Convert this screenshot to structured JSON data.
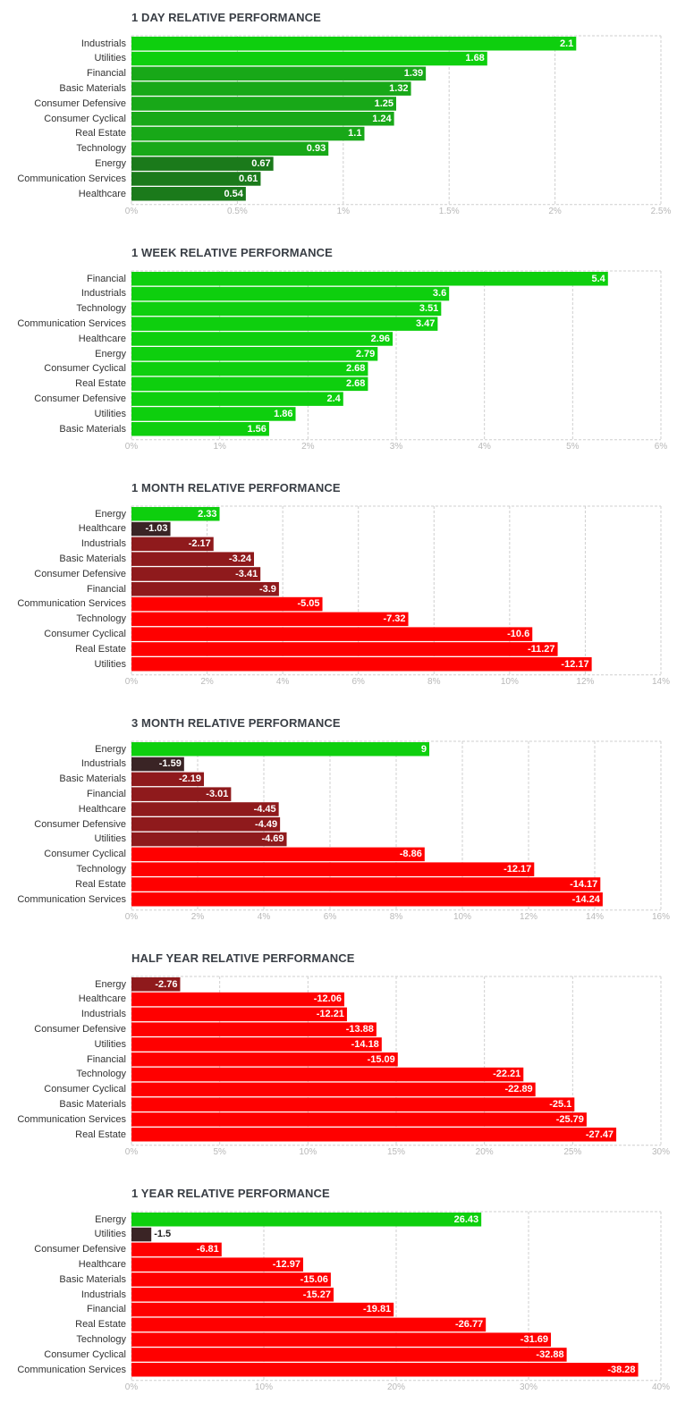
{
  "colors": {
    "pos_strong": "#0ecf0e",
    "pos_mid": "#18a818",
    "pos_weak": "#1b7a1b",
    "neg_weak": "#3a2425",
    "neg_mid": "#8f1a1c",
    "neg_strong": "#ff0000",
    "grid": "#cfcfcf",
    "title": "#3a3f46",
    "tick": "#b8b8b8"
  },
  "chart_data": [
    {
      "type": "bar",
      "orientation": "horizontal",
      "title": "1 DAY RELATIVE PERFORMANCE",
      "categories": [
        "Industrials",
        "Utilities",
        "Financial",
        "Basic Materials",
        "Consumer Defensive",
        "Consumer Cyclical",
        "Real Estate",
        "Technology",
        "Energy",
        "Communication Services",
        "Healthcare"
      ],
      "values": [
        2.1,
        1.68,
        1.39,
        1.32,
        1.25,
        1.24,
        1.1,
        0.93,
        0.67,
        0.61,
        0.54
      ],
      "value_labels": [
        "2.1",
        "1.68",
        "1.39",
        "1.32",
        "1.25",
        "1.24",
        "1.1",
        "0.93",
        "0.67",
        "0.61",
        "0.54"
      ],
      "ticks": [
        "0%",
        "0.5%",
        "1%",
        "1.5%",
        "2%",
        "2.5%"
      ],
      "xlim": [
        0,
        2.5
      ],
      "grid": true
    },
    {
      "type": "bar",
      "orientation": "horizontal",
      "title": "1 WEEK RELATIVE PERFORMANCE",
      "categories": [
        "Financial",
        "Industrials",
        "Technology",
        "Communication Services",
        "Healthcare",
        "Energy",
        "Consumer Cyclical",
        "Real Estate",
        "Consumer Defensive",
        "Utilities",
        "Basic Materials"
      ],
      "values": [
        5.4,
        3.6,
        3.51,
        3.47,
        2.96,
        2.79,
        2.68,
        2.68,
        2.4,
        1.86,
        1.56
      ],
      "value_labels": [
        "5.4",
        "3.6",
        "3.51",
        "3.47",
        "2.96",
        "2.79",
        "2.68",
        "2.68",
        "2.4",
        "1.86",
        "1.56"
      ],
      "ticks": [
        "0%",
        "1%",
        "2%",
        "3%",
        "4%",
        "5%",
        "6%"
      ],
      "xlim": [
        0,
        6
      ],
      "grid": true
    },
    {
      "type": "bar",
      "orientation": "horizontal",
      "title": "1 MONTH RELATIVE PERFORMANCE",
      "categories": [
        "Energy",
        "Healthcare",
        "Industrials",
        "Basic Materials",
        "Consumer Defensive",
        "Financial",
        "Communication Services",
        "Technology",
        "Consumer Cyclical",
        "Real Estate",
        "Utilities"
      ],
      "values": [
        2.33,
        -1.03,
        -2.17,
        -3.24,
        -3.41,
        -3.9,
        -5.05,
        -7.32,
        -10.6,
        -11.27,
        -12.17
      ],
      "value_labels": [
        "2.33",
        "-1.03",
        "-2.17",
        "-3.24",
        "-3.41",
        "-3.9",
        "-5.05",
        "-7.32",
        "-10.6",
        "-11.27",
        "-12.17"
      ],
      "ticks": [
        "0%",
        "2%",
        "4%",
        "6%",
        "8%",
        "10%",
        "12%",
        "14%"
      ],
      "xlim": [
        0,
        14
      ],
      "grid": true
    },
    {
      "type": "bar",
      "orientation": "horizontal",
      "title": "3 MONTH RELATIVE PERFORMANCE",
      "categories": [
        "Energy",
        "Industrials",
        "Basic Materials",
        "Financial",
        "Healthcare",
        "Consumer Defensive",
        "Utilities",
        "Consumer Cyclical",
        "Technology",
        "Real Estate",
        "Communication Services"
      ],
      "values": [
        9,
        -1.59,
        -2.19,
        -3.01,
        -4.45,
        -4.49,
        -4.69,
        -8.86,
        -12.17,
        -14.17,
        -14.24
      ],
      "value_labels": [
        "9",
        "-1.59",
        "-2.19",
        "-3.01",
        "-4.45",
        "-4.49",
        "-4.69",
        "-8.86",
        "-12.17",
        "-14.17",
        "-14.24"
      ],
      "ticks": [
        "0%",
        "2%",
        "4%",
        "6%",
        "8%",
        "10%",
        "12%",
        "14%",
        "16%"
      ],
      "xlim": [
        0,
        16
      ],
      "grid": true
    },
    {
      "type": "bar",
      "orientation": "horizontal",
      "title": "HALF YEAR RELATIVE PERFORMANCE",
      "categories": [
        "Energy",
        "Healthcare",
        "Industrials",
        "Consumer Defensive",
        "Utilities",
        "Financial",
        "Technology",
        "Consumer Cyclical",
        "Basic Materials",
        "Communication Services",
        "Real Estate"
      ],
      "values": [
        -2.76,
        -12.06,
        -12.21,
        -13.88,
        -14.18,
        -15.09,
        -22.21,
        -22.89,
        -25.1,
        -25.79,
        -27.47
      ],
      "value_labels": [
        "-2.76",
        "-12.06",
        "-12.21",
        "-13.88",
        "-14.18",
        "-15.09",
        "-22.21",
        "-22.89",
        "-25.1",
        "-25.79",
        "-27.47"
      ],
      "ticks": [
        "0%",
        "5%",
        "10%",
        "15%",
        "20%",
        "25%",
        "30%"
      ],
      "xlim": [
        0,
        30
      ],
      "grid": true
    },
    {
      "type": "bar",
      "orientation": "horizontal",
      "title": "1 YEAR RELATIVE PERFORMANCE",
      "categories": [
        "Energy",
        "Utilities",
        "Consumer Defensive",
        "Healthcare",
        "Basic Materials",
        "Industrials",
        "Financial",
        "Real Estate",
        "Technology",
        "Consumer Cyclical",
        "Communication Services"
      ],
      "values": [
        26.43,
        -1.5,
        -6.81,
        -12.97,
        -15.06,
        -15.27,
        -19.81,
        -26.77,
        -31.69,
        -32.88,
        -38.28
      ],
      "value_labels": [
        "26.43",
        "-1.5",
        "-6.81",
        "-12.97",
        "-15.06",
        "-15.27",
        "-19.81",
        "-26.77",
        "-31.69",
        "-32.88",
        "-38.28"
      ],
      "ticks": [
        "0%",
        "10%",
        "20%",
        "30%",
        "40%"
      ],
      "xlim": [
        0,
        40
      ],
      "grid": true
    }
  ]
}
